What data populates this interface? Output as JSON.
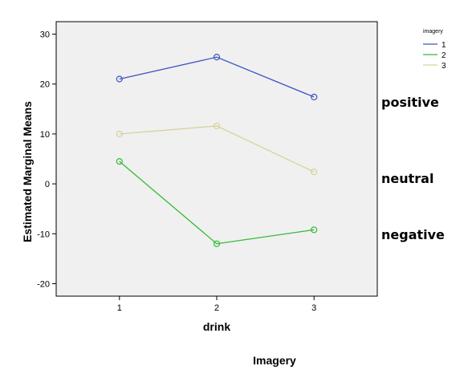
{
  "chart_data": {
    "type": "line",
    "xlabel": "drink",
    "ylabel": "Estimated Marginal Means",
    "caption": "Imagery",
    "x": [
      1,
      2,
      3
    ],
    "xticks": [
      "1",
      "2",
      "3"
    ],
    "yticks": [
      "-20",
      "-10",
      "0",
      "10",
      "20",
      "30"
    ],
    "xlim": [
      0.35,
      3.65
    ],
    "ylim": [
      -22.5,
      32.5
    ],
    "grid": false,
    "legend": {
      "title": "imagery",
      "placement": "top-right",
      "entries": [
        "1",
        "2",
        "3"
      ]
    },
    "series": [
      {
        "name": "1",
        "color": "#3d55c1",
        "values": [
          21.0,
          25.4,
          17.4
        ]
      },
      {
        "name": "2",
        "color": "#33bb33",
        "values": [
          4.5,
          -12.0,
          -9.2
        ]
      },
      {
        "name": "3",
        "color": "#d7d29c",
        "values": [
          10.0,
          11.6,
          2.4
        ]
      }
    ],
    "annotations": [
      "positive",
      "neutral",
      "negative"
    ],
    "plot_background": "#f0f0f0"
  }
}
